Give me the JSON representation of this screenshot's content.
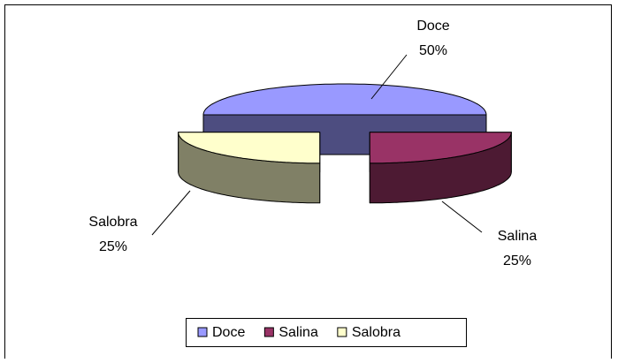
{
  "chart_data": {
    "type": "pie",
    "categories": [
      "Doce",
      "Salina",
      "Salobra"
    ],
    "values": [
      50,
      25,
      25
    ],
    "value_labels": [
      "50%",
      "25%",
      "25%"
    ],
    "colors": [
      "#9999ff",
      "#993366",
      "#ffffcc"
    ],
    "legend": "bottom",
    "three_d": true,
    "exploded": true
  }
}
